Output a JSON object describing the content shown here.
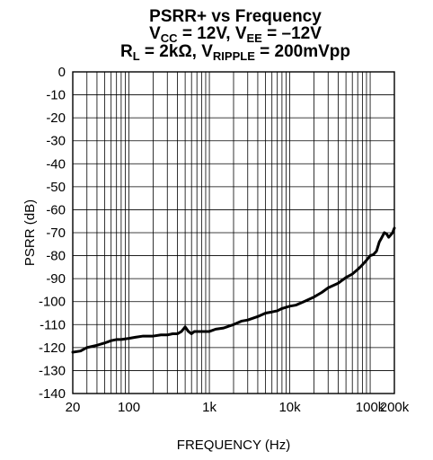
{
  "chart_data": {
    "type": "line",
    "title_lines": [
      {
        "parts": [
          {
            "text": "PSRR+ vs Frequency"
          }
        ]
      },
      {
        "parts": [
          {
            "text": "V"
          },
          {
            "text": "CC",
            "sub": true
          },
          {
            "text": " = 12V, V"
          },
          {
            "text": "EE",
            "sub": true
          },
          {
            "text": " = –12V"
          }
        ]
      },
      {
        "parts": [
          {
            "text": "R"
          },
          {
            "text": "L",
            "sub": true
          },
          {
            "text": " = 2kΩ, V"
          },
          {
            "text": "RIPPLE",
            "sub": true
          },
          {
            "text": " = 200mVpp"
          }
        ]
      }
    ],
    "xlabel": "FREQUENCY (Hz)",
    "ylabel": "PSRR (dB)",
    "x_scale": "log",
    "xlim": [
      20,
      200000
    ],
    "ylim": [
      -140,
      0
    ],
    "grid": true,
    "x_ticks": [
      {
        "value": 20,
        "label": "20"
      },
      {
        "value": 100,
        "label": "100"
      },
      {
        "value": 1000,
        "label": "1k"
      },
      {
        "value": 10000,
        "label": "10k"
      },
      {
        "value": 100000,
        "label": "100k"
      },
      {
        "value": 200000,
        "label": "200k"
      }
    ],
    "y_ticks": [
      0,
      -10,
      -20,
      -30,
      -40,
      -50,
      -60,
      -70,
      -80,
      -90,
      -100,
      -110,
      -120,
      -130,
      -140
    ],
    "series": [
      {
        "color": "#000000",
        "x": [
          20,
          25,
          30,
          40,
          50,
          60,
          70,
          80,
          100,
          120,
          150,
          200,
          250,
          300,
          350,
          400,
          450,
          500,
          550,
          600,
          650,
          700,
          800,
          900,
          1000,
          1200,
          1500,
          2000,
          2500,
          3000,
          4000,
          5000,
          6000,
          7000,
          8000,
          10000,
          12000,
          15000,
          20000,
          25000,
          30000,
          40000,
          50000,
          60000,
          70000,
          80000,
          90000,
          100000,
          110000,
          120000,
          130000,
          140000,
          150000,
          160000,
          170000,
          180000,
          190000,
          200000
        ],
        "y": [
          -122,
          -121.5,
          -120,
          -119,
          -118,
          -117,
          -116.5,
          -116.5,
          -116,
          -115.5,
          -115,
          -115,
          -114.5,
          -114.5,
          -114,
          -114,
          -113,
          -111,
          -113,
          -114,
          -113,
          -113,
          -113,
          -113,
          -113,
          -112,
          -111.5,
          -110,
          -108.5,
          -108,
          -106.5,
          -105,
          -104.5,
          -104,
          -103,
          -102,
          -101.5,
          -100,
          -98,
          -96,
          -94,
          -92,
          -89.5,
          -88,
          -86,
          -84,
          -82,
          -80,
          -79.5,
          -78,
          -74,
          -72,
          -70,
          -70.5,
          -72,
          -71,
          -70,
          -68
        ]
      }
    ]
  }
}
